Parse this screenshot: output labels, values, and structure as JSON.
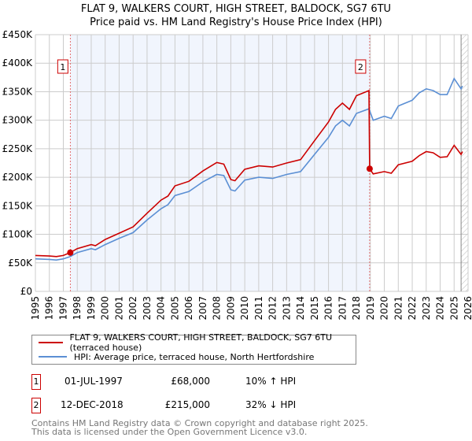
{
  "chart_data": {
    "type": "line",
    "title": "FLAT 9, WALKERS COURT, HIGH STREET, BALDOCK, SG7 6TU",
    "subtitle": "Price paid vs. HM Land Registry's House Price Index (HPI)",
    "xlim": [
      1995,
      2026
    ],
    "ylim": [
      0,
      450000
    ],
    "yticks": [
      {
        "v": 0,
        "label": "£0"
      },
      {
        "v": 50000,
        "label": "£50K"
      },
      {
        "v": 100000,
        "label": "£100K"
      },
      {
        "v": 150000,
        "label": "£150K"
      },
      {
        "v": 200000,
        "label": "£200K"
      },
      {
        "v": 250000,
        "label": "£250K"
      },
      {
        "v": 300000,
        "label": "£300K"
      },
      {
        "v": 350000,
        "label": "£350K"
      },
      {
        "v": 400000,
        "label": "£400K"
      },
      {
        "v": 450000,
        "label": "£450K"
      }
    ],
    "xticks": [
      "1995",
      "1996",
      "1997",
      "1998",
      "1999",
      "2000",
      "2001",
      "2002",
      "2003",
      "2004",
      "2005",
      "2006",
      "2007",
      "2008",
      "2009",
      "2010",
      "2011",
      "2012",
      "2013",
      "2014",
      "2015",
      "2016",
      "2017",
      "2018",
      "2019",
      "2020",
      "2021",
      "2022",
      "2023",
      "2024",
      "2025",
      "2026"
    ],
    "grid": true,
    "shaded_range": [
      1997.5,
      2018.95
    ],
    "forecast_hatch_from": 2025.5,
    "series": [
      {
        "name": "FLAT 9, WALKERS COURT, HIGH STREET, BALDOCK, SG7 6TU (terraced house)",
        "color": "#cc0000",
        "x": [
          1995,
          1996,
          1996.5,
          1997,
          1997.5,
          1998,
          1999,
          1999.3,
          2000,
          2001,
          2002,
          2003,
          2004,
          2004.5,
          2005,
          2006,
          2007,
          2008,
          2008.5,
          2009,
          2009.3,
          2010,
          2011,
          2012,
          2013,
          2014,
          2015,
          2016,
          2016.5,
          2017,
          2017.5,
          2018,
          2018.9,
          2018.95,
          2019.2,
          2020,
          2020.5,
          2021,
          2022,
          2022.5,
          2023,
          2023.5,
          2024,
          2024.5,
          2025,
          2025.5,
          2025.6
        ],
        "y": [
          63000,
          62000,
          61000,
          63000,
          68000,
          75000,
          82000,
          80000,
          91000,
          102000,
          113000,
          137000,
          160000,
          167000,
          185000,
          193000,
          211000,
          226000,
          223000,
          196000,
          194000,
          214000,
          220000,
          218000,
          225000,
          231000,
          264000,
          297000,
          319000,
          330000,
          319000,
          343000,
          352000,
          215000,
          206000,
          210000,
          207000,
          222000,
          228000,
          238000,
          245000,
          243000,
          235000,
          236000,
          256000,
          240000,
          245000
        ]
      },
      {
        "name": "HPI: Average price, terraced house, North Hertfordshire",
        "color": "#5b8fd4",
        "x": [
          1995,
          1996,
          1996.5,
          1997,
          1997.5,
          1998,
          1999,
          1999.3,
          2000,
          2001,
          2002,
          2003,
          2004,
          2004.5,
          2005,
          2006,
          2007,
          2008,
          2008.5,
          2009,
          2009.3,
          2010,
          2011,
          2012,
          2013,
          2014,
          2015,
          2016,
          2016.5,
          2017,
          2017.5,
          2018,
          2018.9,
          2019.2,
          2020,
          2020.5,
          2021,
          2022,
          2022.5,
          2023,
          2023.5,
          2024,
          2024.5,
          2025,
          2025.5,
          2025.6
        ],
        "y": [
          57000,
          56000,
          55000,
          57000,
          61000,
          68000,
          75000,
          73000,
          82000,
          93000,
          103000,
          125000,
          145000,
          152000,
          168000,
          175000,
          192000,
          205000,
          203000,
          178000,
          176000,
          195000,
          200000,
          198000,
          205000,
          210000,
          240000,
          270000,
          290000,
          300000,
          290000,
          312000,
          320000,
          300000,
          307000,
          303000,
          325000,
          335000,
          348000,
          355000,
          352000,
          345000,
          345000,
          373000,
          355000,
          360000
        ]
      }
    ],
    "markers": [
      {
        "id": "1",
        "x": 1997.5,
        "y": 68000
      },
      {
        "id": "2",
        "x": 2018.95,
        "y": 215000
      }
    ]
  },
  "legend": {
    "items": [
      {
        "label": "FLAT 9, WALKERS COURT, HIGH STREET, BALDOCK, SG7 6TU (terraced house)",
        "color": "#cc0000"
      },
      {
        "label": "HPI: Average price, terraced house, North Hertfordshire",
        "color": "#5b8fd4"
      }
    ]
  },
  "transactions": [
    {
      "id": "1",
      "date": "01-JUL-1997",
      "price": "£68,000",
      "hpi": "10% ↑ HPI"
    },
    {
      "id": "2",
      "date": "12-DEC-2018",
      "price": "£215,000",
      "hpi": "32% ↓ HPI"
    }
  ],
  "footer": {
    "line1": "Contains HM Land Registry data © Crown copyright and database right 2025.",
    "line2": "This data is licensed under the Open Government Licence v3.0."
  }
}
